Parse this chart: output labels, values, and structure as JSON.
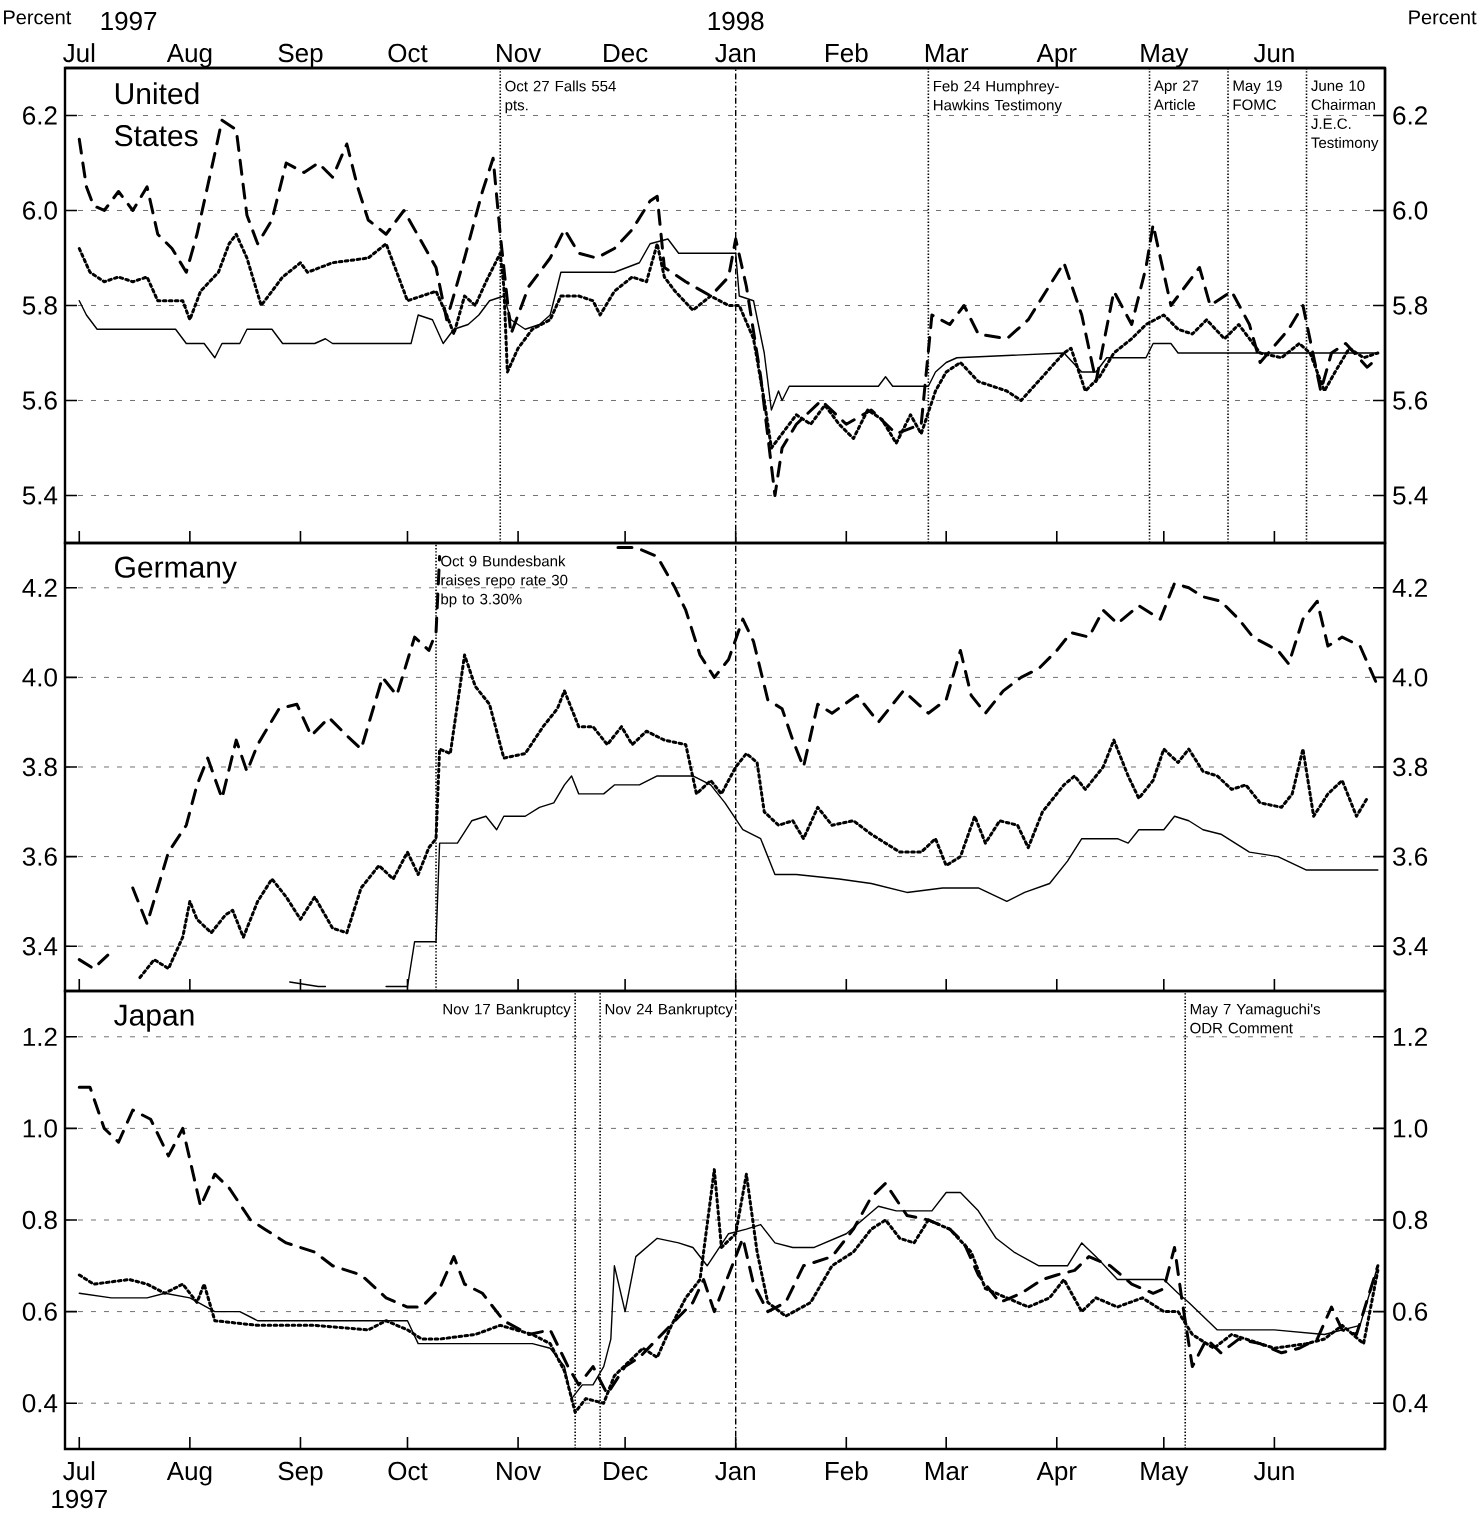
{
  "chart_data": [
    {
      "type": "line",
      "title": "United States",
      "ylabel": "Percent",
      "y2label": "Percent",
      "grid": "y",
      "annotations": [
        "1997",
        "1998",
        "1997"
      ],
      "xlim": [
        "1997-06-27",
        "1998-07-02"
      ],
      "ylim": [
        5.3,
        6.3
      ],
      "y2lim": [
        5.3,
        6.3
      ],
      "xticks": [
        {
          "value": "1997-07-01",
          "label": "Jul"
        },
        {
          "value": "1997-08-01",
          "label": "Aug"
        },
        {
          "value": "1997-09-01",
          "label": "Sep"
        },
        {
          "value": "1997-10-01",
          "label": "Oct"
        },
        {
          "value": "1997-11-01",
          "label": "Nov"
        },
        {
          "value": "1997-12-01",
          "label": "Dec"
        },
        {
          "value": "1998-01-01",
          "label": "Jan"
        },
        {
          "value": "1998-02-01",
          "label": "Feb"
        },
        {
          "value": "1998-03-01",
          "label": "Mar"
        },
        {
          "value": "1998-04-01",
          "label": "Apr"
        },
        {
          "value": "1998-05-01",
          "label": "May"
        },
        {
          "value": "1998-06-01",
          "label": "Jun"
        }
      ],
      "yticks": [
        5.4,
        5.6,
        5.8,
        {
          "value": 6.0,
          "label": "6.0"
        },
        6.2
      ],
      "y2ticks": [
        5.4,
        5.6,
        5.8,
        {
          "value": 6.0,
          "label": "6.0"
        },
        6.2
      ],
      "ref_lines": [
        {
          "axis": "x",
          "value": "1997-10-27",
          "label": "Oct 27 Falls 554 pts.",
          "line_style": "dotted"
        },
        {
          "axis": "x",
          "value": "1998-01-01",
          "label": null,
          "line_style": "dashdot"
        },
        {
          "axis": "x",
          "value": "1998-02-24",
          "label": "Feb 24 Humphrey-Hawkins Testimony",
          "line_style": "dotted"
        },
        {
          "axis": "x",
          "value": "1998-04-27",
          "label": "Apr 27 Article",
          "line_style": "dotted"
        },
        {
          "axis": "x",
          "value": "1998-05-19",
          "label": "May 19 FOMC",
          "line_style": "dotted"
        },
        {
          "axis": "x",
          "value": "1998-06-10",
          "label": "June 10 Chairman J.E.C. Testimony",
          "line_style": "dotted"
        }
      ],
      "series": [
        {
          "color": "#000000",
          "line_style": "solid",
          "x": [
            "1997-07-01",
            "1997-07-03",
            "1997-07-06",
            "1997-07-28",
            "1997-07-31",
            "1997-08-05",
            "1997-08-08",
            "1997-08-10",
            "1997-08-15",
            "1997-08-17",
            "1997-08-24",
            "1997-08-27",
            "1997-09-05",
            "1997-09-08",
            "1997-09-10",
            "1997-10-02",
            "1997-10-04",
            "1997-10-08",
            "1997-10-11",
            "1997-10-14",
            "1997-10-18",
            "1997-10-21",
            "1997-10-24",
            "1997-10-28",
            "1997-10-30",
            "1997-11-03",
            "1997-11-07",
            "1997-11-10",
            "1997-11-13",
            "1997-11-28",
            "1997-12-05",
            "1997-12-08",
            "1997-12-13",
            "1997-12-16",
            "1998-01-01",
            "1998-01-02",
            "1998-01-06",
            "1998-01-09",
            "1998-01-11",
            "1998-01-13",
            "1998-01-14",
            "1998-01-16",
            "1998-02-10",
            "1998-02-12",
            "1998-02-14",
            "1998-02-24",
            "1998-02-26",
            "1998-03-01",
            "1998-03-04",
            "1998-04-03",
            "1998-04-08",
            "1998-04-12",
            "1998-04-15",
            "1998-04-26",
            "1998-04-28",
            "1998-05-03",
            "1998-05-05",
            "1998-06-30"
          ],
          "values": [
            5.81,
            5.78,
            5.75,
            5.75,
            5.72,
            5.72,
            5.69,
            5.72,
            5.72,
            5.75,
            5.75,
            5.72,
            5.72,
            5.73,
            5.72,
            5.72,
            5.78,
            5.77,
            5.72,
            5.75,
            5.76,
            5.78,
            5.81,
            5.82,
            5.77,
            5.75,
            5.76,
            5.78,
            5.87,
            5.87,
            5.89,
            5.93,
            5.94,
            5.91,
            5.91,
            5.82,
            5.81,
            5.7,
            5.58,
            5.62,
            5.6,
            5.63,
            5.63,
            5.65,
            5.63,
            5.63,
            5.66,
            5.68,
            5.69,
            5.7,
            5.66,
            5.66,
            5.69,
            5.69,
            5.72,
            5.72,
            5.7,
            5.7
          ]
        },
        {
          "color": "#000000",
          "line_style": "dotted",
          "x": [
            "1997-07-01",
            "1997-07-04",
            "1997-07-08",
            "1997-07-12",
            "1997-07-16",
            "1997-07-20",
            "1997-07-23",
            "1997-07-30",
            "1997-08-01",
            "1997-08-04",
            "1997-08-09",
            "1997-08-12",
            "1997-08-14",
            "1997-08-17",
            "1997-08-21",
            "1997-08-27",
            "1997-09-01",
            "1997-09-03",
            "1997-09-10",
            "1997-09-20",
            "1997-09-25",
            "1997-09-29",
            "1997-10-01",
            "1997-10-05",
            "1997-10-09",
            "1997-10-12",
            "1997-10-14",
            "1997-10-17",
            "1997-10-20",
            "1997-10-23",
            "1997-10-27",
            "1997-10-28",
            "1997-10-29",
            "1997-11-01",
            "1997-11-05",
            "1997-11-10",
            "1997-11-13",
            "1997-11-18",
            "1997-11-22",
            "1997-11-24",
            "1997-11-28",
            "1997-12-03",
            "1997-12-07",
            "1997-12-10",
            "1997-12-12",
            "1997-12-15",
            "1997-12-20",
            "1997-12-25",
            "1997-12-30",
            "1998-01-02",
            "1998-01-06",
            "1998-01-09",
            "1998-01-11",
            "1998-01-14",
            "1998-01-18",
            "1998-01-22",
            "1998-01-26",
            "1998-01-30",
            "1998-02-03",
            "1998-02-07",
            "1998-02-11",
            "1998-02-15",
            "1998-02-19",
            "1998-02-22",
            "1998-02-26",
            "1998-03-01",
            "1998-03-05",
            "1998-03-10",
            "1998-03-18",
            "1998-03-22",
            "1998-03-28",
            "1998-04-03",
            "1998-04-05",
            "1998-04-09",
            "1998-04-13",
            "1998-04-17",
            "1998-04-22",
            "1998-04-26",
            "1998-05-01",
            "1998-05-05",
            "1998-05-09",
            "1998-05-13",
            "1998-05-18",
            "1998-05-22",
            "1998-05-28",
            "1998-06-03",
            "1998-06-08",
            "1998-06-11",
            "1998-06-15",
            "1998-06-18",
            "1998-06-22",
            "1998-06-26",
            "1998-06-30"
          ],
          "values": [
            5.92,
            5.87,
            5.85,
            5.86,
            5.85,
            5.86,
            5.81,
            5.81,
            5.77,
            5.83,
            5.87,
            5.93,
            5.95,
            5.9,
            5.8,
            5.86,
            5.89,
            5.87,
            5.89,
            5.9,
            5.93,
            5.85,
            5.81,
            5.82,
            5.83,
            5.78,
            5.74,
            5.82,
            5.8,
            5.85,
            5.91,
            5.84,
            5.66,
            5.71,
            5.75,
            5.77,
            5.82,
            5.82,
            5.81,
            5.78,
            5.83,
            5.86,
            5.85,
            5.93,
            5.86,
            5.83,
            5.79,
            5.82,
            5.8,
            5.8,
            5.73,
            5.6,
            5.5,
            5.53,
            5.57,
            5.55,
            5.59,
            5.55,
            5.52,
            5.58,
            5.56,
            5.51,
            5.57,
            5.53,
            5.62,
            5.66,
            5.68,
            5.64,
            5.62,
            5.6,
            5.65,
            5.7,
            5.71,
            5.62,
            5.65,
            5.7,
            5.73,
            5.76,
            5.78,
            5.75,
            5.74,
            5.77,
            5.73,
            5.76,
            5.7,
            5.69,
            5.72,
            5.7,
            5.62,
            5.66,
            5.71,
            5.69,
            5.7
          ]
        },
        {
          "color": "#000000",
          "line_style": "dashed",
          "x": [
            "1997-07-01",
            "1997-07-03",
            "1997-07-05",
            "1997-07-08",
            "1997-07-12",
            "1997-07-16",
            "1997-07-20",
            "1997-07-23",
            "1997-07-27",
            "1997-07-31",
            "1997-08-03",
            "1997-08-08",
            "1997-08-10",
            "1997-08-14",
            "1997-08-17",
            "1997-08-20",
            "1997-08-24",
            "1997-08-28",
            "1997-09-02",
            "1997-09-06",
            "1997-09-10",
            "1997-09-14",
            "1997-09-17",
            "1997-09-20",
            "1997-09-25",
            "1997-09-30",
            "1997-10-03",
            "1997-10-09",
            "1997-10-12",
            "1997-10-17",
            "1997-10-22",
            "1997-10-25",
            "1997-10-27",
            "1997-10-30",
            "1997-11-04",
            "1997-11-10",
            "1997-11-14",
            "1997-11-18",
            "1997-11-23",
            "1997-11-28",
            "1997-12-03",
            "1997-12-08",
            "1997-12-10",
            "1997-12-12",
            "1997-12-18",
            "1997-12-25",
            "1997-12-30",
            "1998-01-01",
            "1998-01-04",
            "1998-01-08",
            "1998-01-12",
            "1998-01-14",
            "1998-01-18",
            "1998-01-25",
            "1998-02-01",
            "1998-02-08",
            "1998-02-15",
            "1998-02-22",
            "1998-02-25",
            "1998-03-02",
            "1998-03-06",
            "1998-03-10",
            "1998-03-18",
            "1998-03-24",
            "1998-04-03",
            "1998-04-08",
            "1998-04-12",
            "1998-04-17",
            "1998-04-22",
            "1998-04-26",
            "1998-04-28",
            "1998-05-03",
            "1998-05-08",
            "1998-05-11",
            "1998-05-14",
            "1998-05-20",
            "1998-05-25",
            "1998-05-28",
            "1998-06-05",
            "1998-06-09",
            "1998-06-14",
            "1998-06-17",
            "1998-06-21",
            "1998-06-27",
            "1998-06-30"
          ],
          "values": [
            6.15,
            6.05,
            6.01,
            6.0,
            6.04,
            6.0,
            6.05,
            5.95,
            5.92,
            5.87,
            5.95,
            6.12,
            6.19,
            6.17,
            5.99,
            5.93,
            5.98,
            6.1,
            6.08,
            6.1,
            6.07,
            6.14,
            6.05,
            5.98,
            5.95,
            6.0,
            5.96,
            5.88,
            5.77,
            5.9,
            6.04,
            6.11,
            5.95,
            5.74,
            5.84,
            5.9,
            5.96,
            5.91,
            5.9,
            5.92,
            5.96,
            6.02,
            6.03,
            5.88,
            5.85,
            5.82,
            5.86,
            5.94,
            5.84,
            5.65,
            5.4,
            5.5,
            5.55,
            5.6,
            5.55,
            5.58,
            5.53,
            5.55,
            5.78,
            5.76,
            5.8,
            5.74,
            5.73,
            5.77,
            5.89,
            5.78,
            5.64,
            5.83,
            5.76,
            5.88,
            5.97,
            5.8,
            5.85,
            5.88,
            5.8,
            5.83,
            5.76,
            5.68,
            5.75,
            5.8,
            5.62,
            5.7,
            5.72,
            5.67,
            5.69
          ]
        }
      ]
    },
    {
      "type": "line",
      "title": "Germany",
      "grid": "y",
      "xlim": [
        "1997-06-27",
        "1998-07-02"
      ],
      "ylim": [
        3.3,
        4.3
      ],
      "y2lim": [
        3.3,
        4.3
      ],
      "xticks": [
        {
          "value": "1997-07-01",
          "label": null
        },
        {
          "value": "1997-08-01",
          "label": null
        },
        {
          "value": "1997-09-01",
          "label": null
        },
        {
          "value": "1997-10-01",
          "label": null
        },
        {
          "value": "1997-11-01",
          "label": null
        },
        {
          "value": "1997-12-01",
          "label": null
        },
        {
          "value": "1998-01-01",
          "label": null
        },
        {
          "value": "1998-02-01",
          "label": null
        },
        {
          "value": "1998-03-01",
          "label": null
        },
        {
          "value": "1998-04-01",
          "label": null
        },
        {
          "value": "1998-05-01",
          "label": null
        },
        {
          "value": "1998-06-01",
          "label": null
        }
      ],
      "yticks": [
        3.4,
        3.6,
        3.8,
        {
          "value": 4.0,
          "label": "4.0"
        },
        4.2
      ],
      "y2ticks": [
        3.4,
        3.6,
        3.8,
        {
          "value": 4.0,
          "label": "4.0"
        },
        4.2
      ],
      "tick_labels": "y",
      "ref_lines": [
        {
          "axis": "x",
          "value": "1997-10-09",
          "label": "Oct 9 Bundesbank raises repo rate 30 bp to 3.30%",
          "line_style": "dotted"
        },
        {
          "axis": "x",
          "value": "1998-01-01",
          "label": null,
          "line_style": "dashdot"
        }
      ],
      "series": [
        {
          "color": "#000000",
          "line_style": "solid",
          "x": [
            "1997-08-29",
            "1997-09-06",
            "1997-09-08",
            "1997-09-15",
            "1997-09-25",
            "1997-09-30",
            "1997-10-01",
            "1997-10-03",
            "1997-10-09",
            "1997-10-10",
            "1997-10-15",
            "1997-10-19",
            "1997-10-23",
            "1997-10-26",
            "1997-10-28",
            "1997-11-03",
            "1997-11-07",
            "1997-11-11",
            "1997-11-14",
            "1997-11-16",
            "1997-11-18",
            "1997-11-25",
            "1997-11-28",
            "1997-12-05",
            "1997-12-10",
            "1997-12-20",
            "1997-12-25",
            "1997-12-29",
            "1998-01-03",
            "1998-01-08",
            "1998-01-12",
            "1998-01-18",
            "1998-01-30",
            "1998-02-08",
            "1998-02-18",
            "1998-02-28",
            "1998-03-10",
            "1998-03-18",
            "1998-03-23",
            "1998-03-30",
            "1998-04-04",
            "1998-04-08",
            "1998-04-18",
            "1998-04-21",
            "1998-04-24",
            "1998-05-01",
            "1998-05-04",
            "1998-05-08",
            "1998-05-12",
            "1998-05-17",
            "1998-05-25",
            "1998-06-02",
            "1998-06-10",
            "1998-06-30"
          ],
          "values": [
            3.32,
            3.31,
            3.31,
            null,
            3.31,
            3.31,
            3.31,
            3.41,
            3.41,
            3.63,
            3.63,
            3.68,
            3.69,
            3.66,
            3.69,
            3.69,
            3.71,
            3.72,
            3.76,
            3.78,
            3.74,
            3.74,
            3.76,
            3.76,
            3.78,
            3.78,
            3.76,
            3.72,
            3.66,
            3.64,
            3.56,
            3.56,
            3.55,
            3.54,
            3.52,
            3.53,
            3.53,
            3.5,
            3.52,
            3.54,
            3.59,
            3.64,
            3.64,
            3.63,
            3.66,
            3.66,
            3.69,
            3.68,
            3.66,
            3.65,
            3.61,
            3.6,
            3.57,
            3.57
          ]
        },
        {
          "color": "#000000",
          "line_style": "dotted",
          "x": [
            "1997-07-18",
            "1997-07-22",
            "1997-07-26",
            "1997-07-30",
            "1997-08-01",
            "1997-08-03",
            "1997-08-07",
            "1997-08-11",
            "1997-08-13",
            "1997-08-16",
            "1997-08-20",
            "1997-08-24",
            "1997-08-28",
            "1997-09-01",
            "1997-09-05",
            "1997-09-10",
            "1997-09-14",
            "1997-09-18",
            "1997-09-23",
            "1997-09-27",
            "1997-10-01",
            "1997-10-04",
            "1997-10-07",
            "1997-10-09",
            "1997-10-10",
            "1997-10-13",
            "1997-10-17",
            "1997-10-20",
            "1997-10-24",
            "1997-10-28",
            "1997-11-03",
            "1997-11-08",
            "1997-11-12",
            "1997-11-14",
            "1997-11-18",
            "1997-11-22",
            "1997-11-26",
            "1997-11-30",
            "1997-12-03",
            "1997-12-07",
            "1997-12-12",
            "1997-12-18",
            "1997-12-21",
            "1997-12-25",
            "1997-12-28",
            "1998-01-01",
            "1998-01-04",
            "1998-01-07",
            "1998-01-09",
            "1998-01-13",
            "1998-01-17",
            "1998-01-20",
            "1998-01-24",
            "1998-01-28",
            "1998-02-03",
            "1998-02-08",
            "1998-02-12",
            "1998-02-16",
            "1998-02-22",
            "1998-02-26",
            "1998-03-01",
            "1998-03-05",
            "1998-03-09",
            "1998-03-12",
            "1998-03-16",
            "1998-03-21",
            "1998-03-24",
            "1998-03-28",
            "1998-04-03",
            "1998-04-06",
            "1998-04-09",
            "1998-04-14",
            "1998-04-17",
            "1998-04-21",
            "1998-04-24",
            "1998-04-28",
            "1998-05-01",
            "1998-05-05",
            "1998-05-08",
            "1998-05-12",
            "1998-05-16",
            "1998-05-20",
            "1998-05-24",
            "1998-05-28",
            "1998-06-03",
            "1998-06-06",
            "1998-06-09",
            "1998-06-12",
            "1998-06-16",
            "1998-06-20",
            "1998-06-24",
            "1998-06-27"
          ],
          "values": [
            3.33,
            3.37,
            3.35,
            3.42,
            3.5,
            3.46,
            3.43,
            3.47,
            3.48,
            3.42,
            3.5,
            3.55,
            3.51,
            3.46,
            3.51,
            3.44,
            3.43,
            3.53,
            3.58,
            3.55,
            3.61,
            3.56,
            3.62,
            3.64,
            3.84,
            3.83,
            4.05,
            3.98,
            3.94,
            3.82,
            3.83,
            3.89,
            3.93,
            3.97,
            3.89,
            3.89,
            3.85,
            3.89,
            3.85,
            3.88,
            3.86,
            3.85,
            3.74,
            3.77,
            3.74,
            3.8,
            3.83,
            3.81,
            3.7,
            3.67,
            3.68,
            3.64,
            3.71,
            3.67,
            3.68,
            3.65,
            3.63,
            3.61,
            3.61,
            3.64,
            3.58,
            3.6,
            3.69,
            3.63,
            3.68,
            3.67,
            3.62,
            3.7,
            3.76,
            3.78,
            3.75,
            3.8,
            3.86,
            3.78,
            3.73,
            3.77,
            3.84,
            3.81,
            3.84,
            3.79,
            3.78,
            3.75,
            3.76,
            3.72,
            3.71,
            3.74,
            3.84,
            3.69,
            3.74,
            3.77,
            3.69,
            3.73
          ]
        },
        {
          "color": "#000000",
          "line_style": "dashed",
          "x": [
            "1997-07-01",
            "1997-07-05",
            "1997-07-09",
            "1997-07-12",
            "1997-07-16",
            "1997-07-20",
            "1997-07-26",
            "1997-07-31",
            "1997-08-03",
            "1997-08-06",
            "1997-08-10",
            "1997-08-14",
            "1997-08-17",
            "1997-08-20",
            "1997-08-26",
            "1997-08-31",
            "1997-09-04",
            "1997-09-09",
            "1997-09-14",
            "1997-09-18",
            "1997-09-24",
            "1997-09-28",
            "1997-10-03",
            "1997-10-07",
            "1997-10-09",
            "1997-10-10",
            "1997-10-12",
            "1997-11-25",
            "1997-11-29",
            "1997-12-04",
            "1997-12-10",
            "1997-12-15",
            "1997-12-18",
            "1997-12-22",
            "1997-12-26",
            "1997-12-30",
            "1998-01-03",
            "1998-01-06",
            "1998-01-10",
            "1998-01-14",
            "1998-01-17",
            "1998-01-20",
            "1998-01-24",
            "1998-01-28",
            "1998-02-04",
            "1998-02-10",
            "1998-02-17",
            "1998-02-24",
            "1998-03-01",
            "1998-03-05",
            "1998-03-08",
            "1998-03-12",
            "1998-03-17",
            "1998-03-22",
            "1998-03-27",
            "1998-04-01",
            "1998-04-05",
            "1998-04-10",
            "1998-04-14",
            "1998-04-18",
            "1998-04-24",
            "1998-04-30",
            "1998-05-04",
            "1998-05-08",
            "1998-05-12",
            "1998-05-17",
            "1998-05-22",
            "1998-05-26",
            "1998-06-02",
            "1998-06-05",
            "1998-06-09",
            "1998-06-13",
            "1998-06-16",
            "1998-06-20",
            "1998-06-25",
            "1998-06-30"
          ],
          "values": [
            3.37,
            3.35,
            3.38,
            null,
            3.53,
            3.45,
            3.61,
            3.67,
            3.76,
            3.82,
            3.73,
            3.86,
            3.79,
            3.85,
            3.93,
            3.94,
            3.87,
            3.91,
            3.87,
            3.84,
            4.0,
            3.96,
            4.09,
            4.06,
            4.1,
            4.27,
            null,
            null,
            4.29,
            4.29,
            4.27,
            4.2,
            4.15,
            4.05,
            4.0,
            4.04,
            4.13,
            4.08,
            3.95,
            3.93,
            3.86,
            3.8,
            3.94,
            3.92,
            3.96,
            3.9,
            3.97,
            3.92,
            3.95,
            4.06,
            3.96,
            3.92,
            3.97,
            4.0,
            4.02,
            4.06,
            4.1,
            4.09,
            4.15,
            4.12,
            4.16,
            4.13,
            4.21,
            4.2,
            4.18,
            4.17,
            4.13,
            4.09,
            4.06,
            4.03,
            4.13,
            4.17,
            4.07,
            4.09,
            4.07,
            3.98
          ]
        }
      ]
    },
    {
      "type": "line",
      "title": "Japan",
      "grid": "y",
      "xlim": [
        "1997-06-27",
        "1998-07-02"
      ],
      "ylim": [
        0.3,
        1.3
      ],
      "y2lim": [
        0.3,
        1.3
      ],
      "xticks": [
        {
          "value": "1997-07-01",
          "label": "Jul"
        },
        {
          "value": "1997-08-01",
          "label": "Aug"
        },
        {
          "value": "1997-09-01",
          "label": "Sep"
        },
        {
          "value": "1997-10-01",
          "label": "Oct"
        },
        {
          "value": "1997-11-01",
          "label": "Nov"
        },
        {
          "value": "1997-12-01",
          "label": "Dec"
        },
        {
          "value": "1998-01-01",
          "label": "Jan"
        },
        {
          "value": "1998-02-01",
          "label": "Feb"
        },
        {
          "value": "1998-03-01",
          "label": "Mar"
        },
        {
          "value": "1998-04-01",
          "label": "Apr"
        },
        {
          "value": "1998-05-01",
          "label": "May"
        },
        {
          "value": "1998-06-01",
          "label": "Jun"
        }
      ],
      "yticks": [
        0.4,
        0.6,
        0.8,
        {
          "value": 1.0,
          "label": "1.0"
        },
        1.2
      ],
      "y2ticks": [
        0.4,
        0.6,
        0.8,
        {
          "value": 1.0,
          "label": "1.0"
        },
        1.2
      ],
      "ref_lines": [
        {
          "axis": "x",
          "value": "1997-11-17",
          "label": "Nov 17 Bankruptcy",
          "line_style": "dotted"
        },
        {
          "axis": "x",
          "value": "1997-11-24",
          "label": "Nov 24 Bankruptcy",
          "line_style": "dotted"
        },
        {
          "axis": "x",
          "value": "1998-01-01",
          "label": null,
          "line_style": "dashdot"
        },
        {
          "axis": "x",
          "value": "1998-05-07",
          "label": "May 7 Yamaguchi's ODR Comment",
          "line_style": "dotted"
        }
      ],
      "series": [
        {
          "color": "#000000",
          "line_style": "solid",
          "x": [
            "1997-07-01",
            "1997-07-10",
            "1997-07-20",
            "1997-07-25",
            "1997-08-01",
            "1997-08-08",
            "1997-08-15",
            "1997-08-20",
            "1997-09-01",
            "1997-09-20",
            "1997-10-01",
            "1997-10-04",
            "1997-10-20",
            "1997-11-05",
            "1997-11-10",
            "1997-11-14",
            "1997-11-16",
            "1997-11-19",
            "1997-11-22",
            "1997-11-25",
            "1997-11-27",
            "1997-11-28",
            "1997-12-01",
            "1997-12-04",
            "1997-12-10",
            "1997-12-16",
            "1997-12-20",
            "1997-12-24",
            "1997-12-30",
            "1998-01-04",
            "1998-01-08",
            "1998-01-12",
            "1998-01-17",
            "1998-01-23",
            "1998-02-01",
            "1998-02-10",
            "1998-02-15",
            "1998-02-25",
            "1998-03-01",
            "1998-03-05",
            "1998-03-10",
            "1998-03-15",
            "1998-03-20",
            "1998-03-27",
            "1998-04-04",
            "1998-04-08",
            "1998-04-12",
            "1998-04-18",
            "1998-05-01",
            "1998-05-05",
            "1998-05-08",
            "1998-05-12",
            "1998-05-16",
            "1998-06-01",
            "1998-06-15",
            "1998-06-25",
            "1998-06-30"
          ],
          "values": [
            0.64,
            0.63,
            0.63,
            0.64,
            0.63,
            0.6,
            0.6,
            0.58,
            0.58,
            0.58,
            0.58,
            0.53,
            0.53,
            0.53,
            0.52,
            0.48,
            0.41,
            0.44,
            0.44,
            0.48,
            0.54,
            0.7,
            0.6,
            0.72,
            0.76,
            0.75,
            0.74,
            0.7,
            0.77,
            0.78,
            0.79,
            0.75,
            0.74,
            0.74,
            0.77,
            0.83,
            0.82,
            0.82,
            0.86,
            0.86,
            0.82,
            0.76,
            0.73,
            0.7,
            0.7,
            0.75,
            0.72,
            0.67,
            0.67,
            0.64,
            0.62,
            0.59,
            0.56,
            0.56,
            0.55,
            0.57,
            0.7
          ]
        },
        {
          "color": "#000000",
          "line_style": "dotted",
          "x": [
            "1997-07-01",
            "1997-07-05",
            "1997-07-15",
            "1997-07-20",
            "1997-07-25",
            "1997-07-30",
            "1997-08-03",
            "1997-08-05",
            "1997-08-08",
            "1997-08-20",
            "1997-09-05",
            "1997-09-20",
            "1997-09-25",
            "1997-10-01",
            "1997-10-05",
            "1997-10-10",
            "1997-10-20",
            "1997-10-27",
            "1997-11-05",
            "1997-11-10",
            "1997-11-14",
            "1997-11-17",
            "1997-11-20",
            "1997-11-25",
            "1997-11-28",
            "1997-12-02",
            "1997-12-06",
            "1997-12-10",
            "1997-12-14",
            "1997-12-18",
            "1997-12-22",
            "1997-12-26",
            "1997-12-28",
            "1998-01-01",
            "1998-01-04",
            "1998-01-07",
            "1998-01-10",
            "1998-01-15",
            "1998-01-22",
            "1998-01-28",
            "1998-02-03",
            "1998-02-08",
            "1998-02-12",
            "1998-02-16",
            "1998-02-20",
            "1998-02-24",
            "1998-03-02",
            "1998-03-08",
            "1998-03-12",
            "1998-03-18",
            "1998-03-24",
            "1998-03-30",
            "1998-04-03",
            "1998-04-08",
            "1998-04-12",
            "1998-04-18",
            "1998-04-25",
            "1998-05-01",
            "1998-05-05",
            "1998-05-09",
            "1998-05-15",
            "1998-05-20",
            "1998-06-01",
            "1998-06-10",
            "1998-06-15",
            "1998-06-20",
            "1998-06-26",
            "1998-06-30"
          ],
          "values": [
            0.68,
            0.66,
            0.67,
            0.66,
            0.64,
            0.66,
            0.62,
            0.66,
            0.58,
            0.57,
            0.57,
            0.56,
            0.58,
            0.56,
            0.54,
            0.54,
            0.55,
            0.57,
            0.55,
            0.53,
            0.47,
            0.38,
            0.41,
            0.4,
            0.46,
            0.49,
            0.52,
            0.5,
            0.57,
            0.63,
            0.67,
            0.91,
            0.74,
            0.77,
            0.9,
            0.73,
            0.62,
            0.59,
            0.62,
            0.7,
            0.73,
            0.78,
            0.8,
            0.76,
            0.75,
            0.8,
            0.78,
            0.73,
            0.65,
            0.63,
            0.61,
            0.63,
            0.67,
            0.6,
            0.63,
            0.61,
            0.63,
            0.6,
            0.6,
            0.55,
            0.52,
            0.55,
            0.52,
            0.53,
            0.54,
            0.57,
            0.53,
            0.69
          ]
        },
        {
          "color": "#000000",
          "line_style": "dashed",
          "x": [
            "1997-07-01",
            "1997-07-04",
            "1997-07-08",
            "1997-07-12",
            "1997-07-16",
            "1997-07-21",
            "1997-07-26",
            "1997-07-30",
            "1997-08-04",
            "1997-08-08",
            "1997-08-12",
            "1997-08-18",
            "1997-08-22",
            "1997-08-28",
            "1997-09-05",
            "1997-09-10",
            "1997-09-18",
            "1997-09-25",
            "1997-10-01",
            "1997-10-05",
            "1997-10-10",
            "1997-10-14",
            "1997-10-17",
            "1997-10-22",
            "1997-10-28",
            "1997-11-04",
            "1997-11-10",
            "1997-11-15",
            "1997-11-18",
            "1997-11-22",
            "1997-11-26",
            "1997-12-01",
            "1997-12-05",
            "1997-12-10",
            "1997-12-15",
            "1997-12-20",
            "1997-12-23",
            "1997-12-26",
            "1997-12-30",
            "1998-01-03",
            "1998-01-06",
            "1998-01-10",
            "1998-01-15",
            "1998-01-20",
            "1998-01-28",
            "1998-02-03",
            "1998-02-08",
            "1998-02-12",
            "1998-02-18",
            "1998-02-24",
            "1998-03-02",
            "1998-03-06",
            "1998-03-10",
            "1998-03-16",
            "1998-03-22",
            "1998-03-28",
            "1998-04-01",
            "1998-04-06",
            "1998-04-10",
            "1998-04-16",
            "1998-04-22",
            "1998-04-28",
            "1998-05-01",
            "1998-05-04",
            "1998-05-06",
            "1998-05-09",
            "1998-05-13",
            "1998-05-17",
            "1998-05-22",
            "1998-05-28",
            "1998-06-03",
            "1998-06-08",
            "1998-06-13",
            "1998-06-17",
            "1998-06-20",
            "1998-06-24",
            "1998-06-30"
          ],
          "values": [
            1.09,
            1.09,
            1.0,
            0.97,
            1.04,
            1.02,
            0.94,
            1.0,
            0.83,
            0.9,
            0.87,
            0.8,
            0.78,
            0.75,
            0.73,
            0.7,
            0.68,
            0.63,
            0.61,
            0.61,
            0.65,
            0.72,
            0.66,
            0.64,
            0.58,
            0.55,
            0.56,
            0.48,
            0.44,
            0.48,
            0.42,
            0.48,
            0.5,
            0.54,
            0.58,
            0.62,
            0.67,
            0.6,
            0.68,
            0.76,
            0.66,
            0.6,
            0.62,
            0.7,
            0.72,
            0.78,
            0.85,
            0.88,
            0.81,
            0.8,
            0.78,
            0.75,
            0.68,
            0.62,
            0.64,
            0.67,
            0.68,
            0.69,
            0.72,
            0.7,
            0.66,
            0.64,
            0.65,
            0.74,
            0.63,
            0.48,
            0.54,
            0.51,
            0.54,
            0.53,
            0.51,
            0.52,
            0.54,
            0.61,
            0.56,
            0.55,
            0.7
          ]
        }
      ]
    }
  ]
}
